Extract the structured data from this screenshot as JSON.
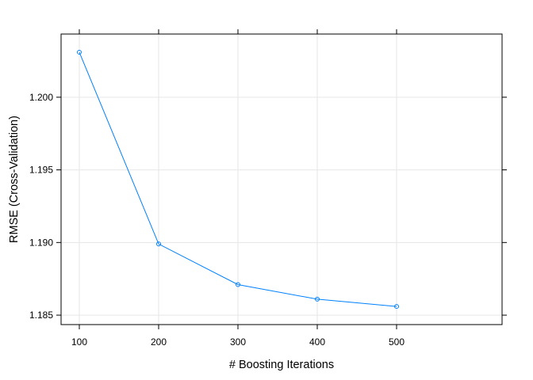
{
  "chart_data": {
    "type": "line",
    "title": "",
    "xlabel": "# Boosting Iterations",
    "ylabel": "RMSE (Cross-Validation)",
    "x": [
      100,
      200,
      300,
      400,
      500
    ],
    "series": [
      {
        "values": [
          1.2031,
          1.1899,
          1.1871,
          1.1861,
          1.1856
        ],
        "color": "#0080ff"
      }
    ],
    "xticks": [
      "100",
      "200",
      "300",
      "400",
      "500"
    ],
    "yticks": [
      "1.185",
      "1.190",
      "1.195",
      "1.200"
    ],
    "xlim": [
      77,
      633
    ],
    "ylim": [
      1.18435,
      1.20435
    ],
    "grid": true,
    "marker": "circle-open",
    "colors": {
      "grid": "#e6e6e6",
      "frame": "#000000",
      "line": "#0080ff"
    }
  }
}
